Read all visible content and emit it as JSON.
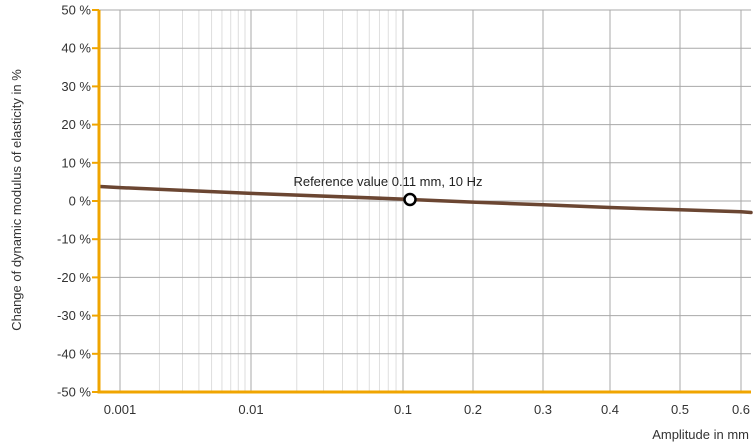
{
  "chart_data": {
    "type": "line",
    "title": "",
    "xlabel": "Amplitude in mm",
    "ylabel": "Change of dynamic modulus of elasticity in %",
    "x_scale": "log-linear",
    "x_ticks": [
      {
        "value": 0.001,
        "label": "0.001"
      },
      {
        "value": 0.01,
        "label": "0.01"
      },
      {
        "value": 0.1,
        "label": "0.1"
      },
      {
        "value": 0.2,
        "label": "0.2"
      },
      {
        "value": 0.3,
        "label": "0.3"
      },
      {
        "value": 0.4,
        "label": "0.4"
      },
      {
        "value": 0.5,
        "label": "0.5"
      },
      {
        "value": 0.6,
        "label": "0.6"
      }
    ],
    "ylim": [
      -50,
      50
    ],
    "y_ticks": [
      {
        "value": 50,
        "label": "50 %"
      },
      {
        "value": 40,
        "label": "40 %"
      },
      {
        "value": 30,
        "label": "30 %"
      },
      {
        "value": 20,
        "label": "20 %"
      },
      {
        "value": 10,
        "label": "10 %"
      },
      {
        "value": 0,
        "label": "0 %"
      },
      {
        "value": -10,
        "label": "-10 %"
      },
      {
        "value": -20,
        "label": "-20 %"
      },
      {
        "value": -30,
        "label": "-30 %"
      },
      {
        "value": -40,
        "label": "-40 %"
      },
      {
        "value": -50,
        "label": "-50 %"
      }
    ],
    "grid": true,
    "series": [
      {
        "x": [
          0.0007,
          0.001,
          0.01,
          0.1,
          0.11,
          0.2,
          0.3,
          0.4,
          0.5,
          0.6,
          0.65
        ],
        "y": [
          3.8,
          3.5,
          2.0,
          0.5,
          0.4,
          -0.3,
          -1.0,
          -1.7,
          -2.3,
          -2.8,
          -3.0
        ]
      }
    ],
    "reference_point": {
      "x": 0.11,
      "y": 0.4,
      "label": "Reference value 0.11 mm, 10 Hz"
    },
    "colors": {
      "line": "#6b4632",
      "axis": "#f0a500",
      "grid_major": "#a8a8a8",
      "grid_minor": "#dedede",
      "marker_fill": "#ffffff",
      "marker_stroke": "#000000"
    }
  }
}
